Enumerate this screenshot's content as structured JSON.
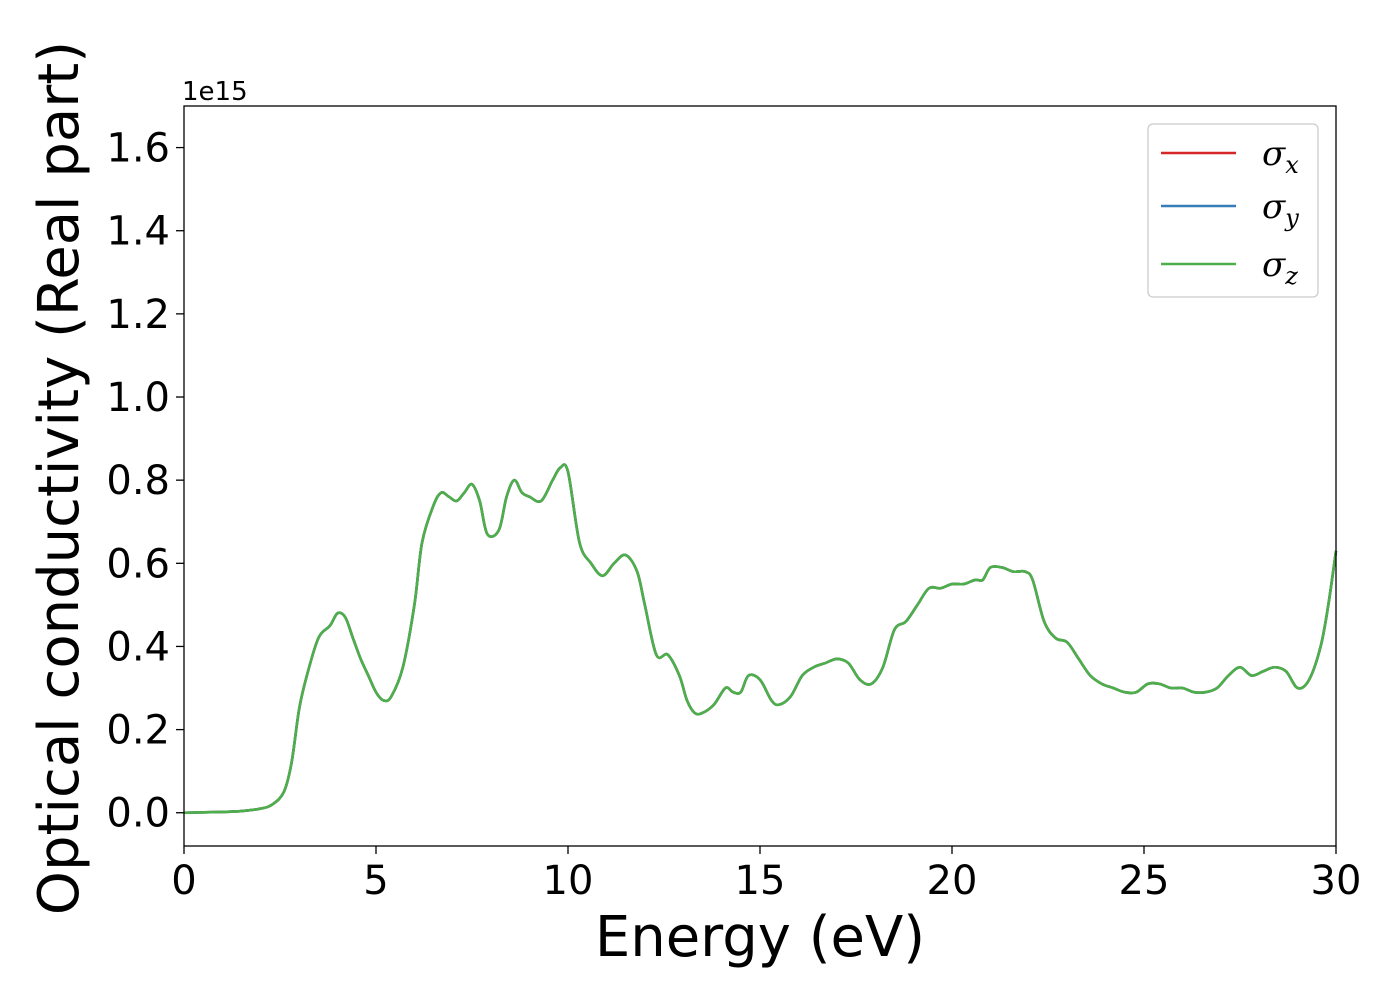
{
  "chart_data": {
    "type": "line",
    "xlabel": "Energy (eV)",
    "ylabel": "Optical conductivity (Real part)",
    "y_offset_label": "1e15",
    "xlim": [
      0,
      30
    ],
    "ylim": [
      -0.08,
      1.7
    ],
    "x_ticks": [
      0,
      5,
      10,
      15,
      20,
      25,
      30
    ],
    "x_tick_labels": [
      "0",
      "5",
      "10",
      "15",
      "20",
      "25",
      "30"
    ],
    "y_ticks": [
      0.0,
      0.2,
      0.4,
      0.6,
      0.8,
      1.0,
      1.2,
      1.4,
      1.6
    ],
    "y_tick_labels": [
      "0.0",
      "0.2",
      "0.4",
      "0.6",
      "0.8",
      "1.0",
      "1.2",
      "1.4",
      "1.6"
    ],
    "grid": false,
    "legend_position": "top-right",
    "x": [
      0,
      1,
      1.5,
      2,
      2.3,
      2.6,
      2.8,
      3.0,
      3.2,
      3.5,
      3.8,
      4.0,
      4.2,
      4.4,
      4.6,
      4.8,
      5.0,
      5.2,
      5.4,
      5.7,
      6.0,
      6.2,
      6.5,
      6.7,
      6.9,
      7.1,
      7.3,
      7.5,
      7.7,
      7.9,
      8.2,
      8.4,
      8.6,
      8.8,
      9.0,
      9.3,
      9.6,
      9.8,
      10.0,
      10.3,
      10.6,
      10.9,
      11.2,
      11.5,
      11.8,
      12.0,
      12.3,
      12.6,
      12.9,
      13.1,
      13.3,
      13.5,
      13.8,
      14.1,
      14.3,
      14.5,
      14.7,
      15.0,
      15.3,
      15.5,
      15.8,
      16.1,
      16.4,
      16.7,
      17.0,
      17.3,
      17.6,
      17.9,
      18.2,
      18.5,
      18.8,
      19.1,
      19.4,
      19.7,
      20.0,
      20.3,
      20.6,
      20.8,
      21.0,
      21.3,
      21.6,
      21.9,
      22.1,
      22.4,
      22.7,
      23.0,
      23.3,
      23.6,
      23.9,
      24.2,
      24.5,
      24.8,
      25.1,
      25.4,
      25.7,
      26.0,
      26.3,
      26.6,
      26.9,
      27.2,
      27.5,
      27.8,
      28.1,
      28.4,
      28.7,
      29.0,
      29.3,
      29.6,
      29.8,
      30.0
    ],
    "series": [
      {
        "name": "σx",
        "color": "#d62728",
        "y": [
          0.0,
          0.002,
          0.004,
          0.01,
          0.02,
          0.05,
          0.12,
          0.25,
          0.33,
          0.42,
          0.45,
          0.48,
          0.47,
          0.42,
          0.37,
          0.33,
          0.29,
          0.27,
          0.28,
          0.35,
          0.5,
          0.65,
          0.74,
          0.77,
          0.76,
          0.75,
          0.77,
          0.79,
          0.75,
          0.67,
          0.68,
          0.76,
          0.8,
          0.77,
          0.76,
          0.75,
          0.8,
          0.83,
          0.82,
          0.65,
          0.6,
          0.57,
          0.6,
          0.62,
          0.58,
          0.5,
          0.38,
          0.38,
          0.33,
          0.27,
          0.24,
          0.24,
          0.26,
          0.3,
          0.29,
          0.29,
          0.33,
          0.32,
          0.27,
          0.26,
          0.28,
          0.33,
          0.35,
          0.36,
          0.37,
          0.36,
          0.32,
          0.31,
          0.35,
          0.44,
          0.46,
          0.5,
          0.54,
          0.54,
          0.55,
          0.55,
          0.56,
          0.56,
          0.59,
          0.59,
          0.58,
          0.58,
          0.56,
          0.46,
          0.42,
          0.41,
          0.37,
          0.33,
          0.31,
          0.3,
          0.29,
          0.29,
          0.31,
          0.31,
          0.3,
          0.3,
          0.29,
          0.29,
          0.3,
          0.33,
          0.35,
          0.33,
          0.34,
          0.35,
          0.34,
          0.3,
          0.32,
          0.4,
          0.5,
          0.63
        ]
      },
      {
        "name": "σy",
        "color": "#377eb8",
        "y": [
          0.0,
          0.002,
          0.004,
          0.01,
          0.02,
          0.05,
          0.12,
          0.25,
          0.33,
          0.42,
          0.45,
          0.48,
          0.47,
          0.42,
          0.37,
          0.33,
          0.29,
          0.27,
          0.28,
          0.35,
          0.5,
          0.65,
          0.74,
          0.77,
          0.76,
          0.75,
          0.77,
          0.79,
          0.75,
          0.67,
          0.68,
          0.76,
          0.8,
          0.77,
          0.76,
          0.75,
          0.8,
          0.83,
          0.82,
          0.65,
          0.6,
          0.57,
          0.6,
          0.62,
          0.58,
          0.5,
          0.38,
          0.38,
          0.33,
          0.27,
          0.24,
          0.24,
          0.26,
          0.3,
          0.29,
          0.29,
          0.33,
          0.32,
          0.27,
          0.26,
          0.28,
          0.33,
          0.35,
          0.36,
          0.37,
          0.36,
          0.32,
          0.31,
          0.35,
          0.44,
          0.46,
          0.5,
          0.54,
          0.54,
          0.55,
          0.55,
          0.56,
          0.56,
          0.59,
          0.59,
          0.58,
          0.58,
          0.56,
          0.46,
          0.42,
          0.41,
          0.37,
          0.33,
          0.31,
          0.3,
          0.29,
          0.29,
          0.31,
          0.31,
          0.3,
          0.3,
          0.29,
          0.29,
          0.3,
          0.33,
          0.35,
          0.33,
          0.34,
          0.35,
          0.34,
          0.3,
          0.32,
          0.4,
          0.5,
          0.63
        ]
      },
      {
        "name": "σz",
        "color": "#4daf4a",
        "y": [
          0.0,
          0.002,
          0.004,
          0.01,
          0.02,
          0.05,
          0.12,
          0.25,
          0.33,
          0.42,
          0.45,
          0.48,
          0.47,
          0.42,
          0.37,
          0.33,
          0.29,
          0.27,
          0.28,
          0.35,
          0.5,
          0.65,
          0.74,
          0.77,
          0.76,
          0.75,
          0.77,
          0.79,
          0.75,
          0.67,
          0.68,
          0.76,
          0.8,
          0.77,
          0.76,
          0.75,
          0.8,
          0.83,
          0.82,
          0.65,
          0.6,
          0.57,
          0.6,
          0.62,
          0.58,
          0.5,
          0.38,
          0.38,
          0.33,
          0.27,
          0.24,
          0.24,
          0.26,
          0.3,
          0.29,
          0.29,
          0.33,
          0.32,
          0.27,
          0.26,
          0.28,
          0.33,
          0.35,
          0.36,
          0.37,
          0.36,
          0.32,
          0.31,
          0.35,
          0.44,
          0.46,
          0.5,
          0.54,
          0.54,
          0.55,
          0.55,
          0.56,
          0.56,
          0.59,
          0.59,
          0.58,
          0.58,
          0.56,
          0.46,
          0.42,
          0.41,
          0.37,
          0.33,
          0.31,
          0.3,
          0.29,
          0.29,
          0.31,
          0.31,
          0.3,
          0.3,
          0.29,
          0.29,
          0.3,
          0.33,
          0.35,
          0.33,
          0.34,
          0.35,
          0.34,
          0.3,
          0.32,
          0.4,
          0.5,
          0.63
        ]
      }
    ],
    "legend": [
      {
        "symbol": "σ",
        "subscript": "x",
        "color": "#d62728"
      },
      {
        "symbol": "σ",
        "subscript": "y",
        "color": "#377eb8"
      },
      {
        "symbol": "σ",
        "subscript": "z",
        "color": "#4daf4a"
      }
    ]
  }
}
